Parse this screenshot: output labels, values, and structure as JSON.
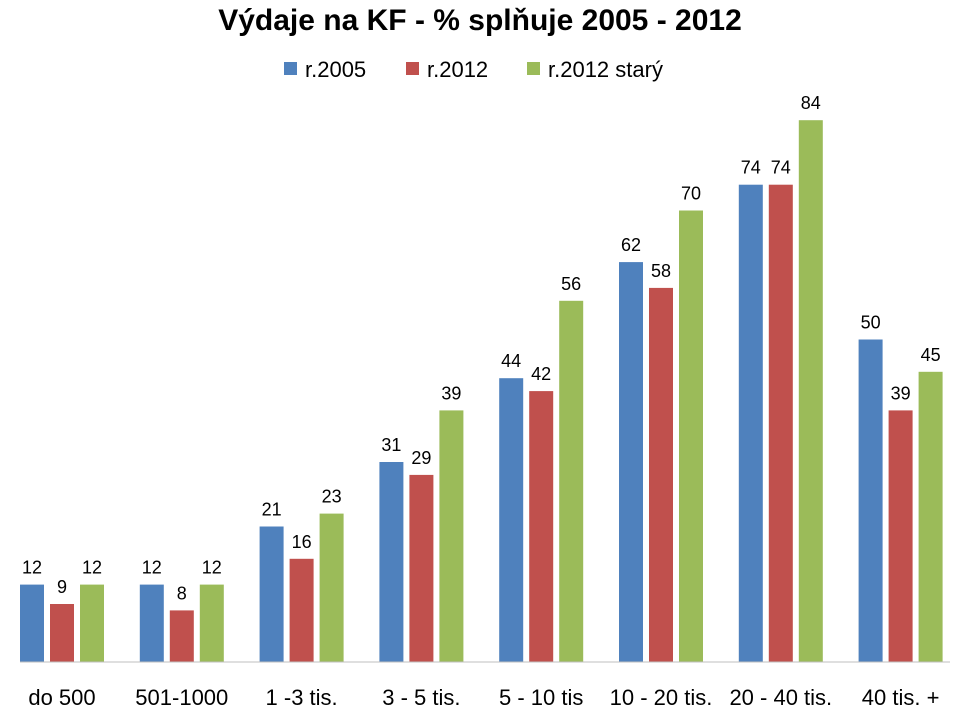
{
  "chart_data": {
    "type": "bar",
    "title": "Výdaje na KF - % splňuje 2005 - 2012",
    "xlabel": "",
    "ylabel": "",
    "ylim": [
      0,
      90
    ],
    "grid": false,
    "legend_position": "top",
    "categories": [
      "do 500",
      "501-1000",
      "1 -3 tis.",
      "3 - 5 tis.",
      "5 - 10 tis",
      "10 - 20 tis.",
      "20 - 40 tis.",
      "40 tis. +"
    ],
    "series": [
      {
        "name": "r.2005",
        "color": "#4F81BD",
        "values": [
          12,
          12,
          21,
          31,
          44,
          62,
          74,
          50
        ]
      },
      {
        "name": "r.2012",
        "color": "#C0504D",
        "values": [
          9,
          8,
          16,
          29,
          42,
          58,
          74,
          39
        ]
      },
      {
        "name": "r.2012 starý",
        "color": "#9BBB59",
        "values": [
          12,
          12,
          23,
          39,
          56,
          70,
          84,
          45
        ]
      }
    ]
  }
}
